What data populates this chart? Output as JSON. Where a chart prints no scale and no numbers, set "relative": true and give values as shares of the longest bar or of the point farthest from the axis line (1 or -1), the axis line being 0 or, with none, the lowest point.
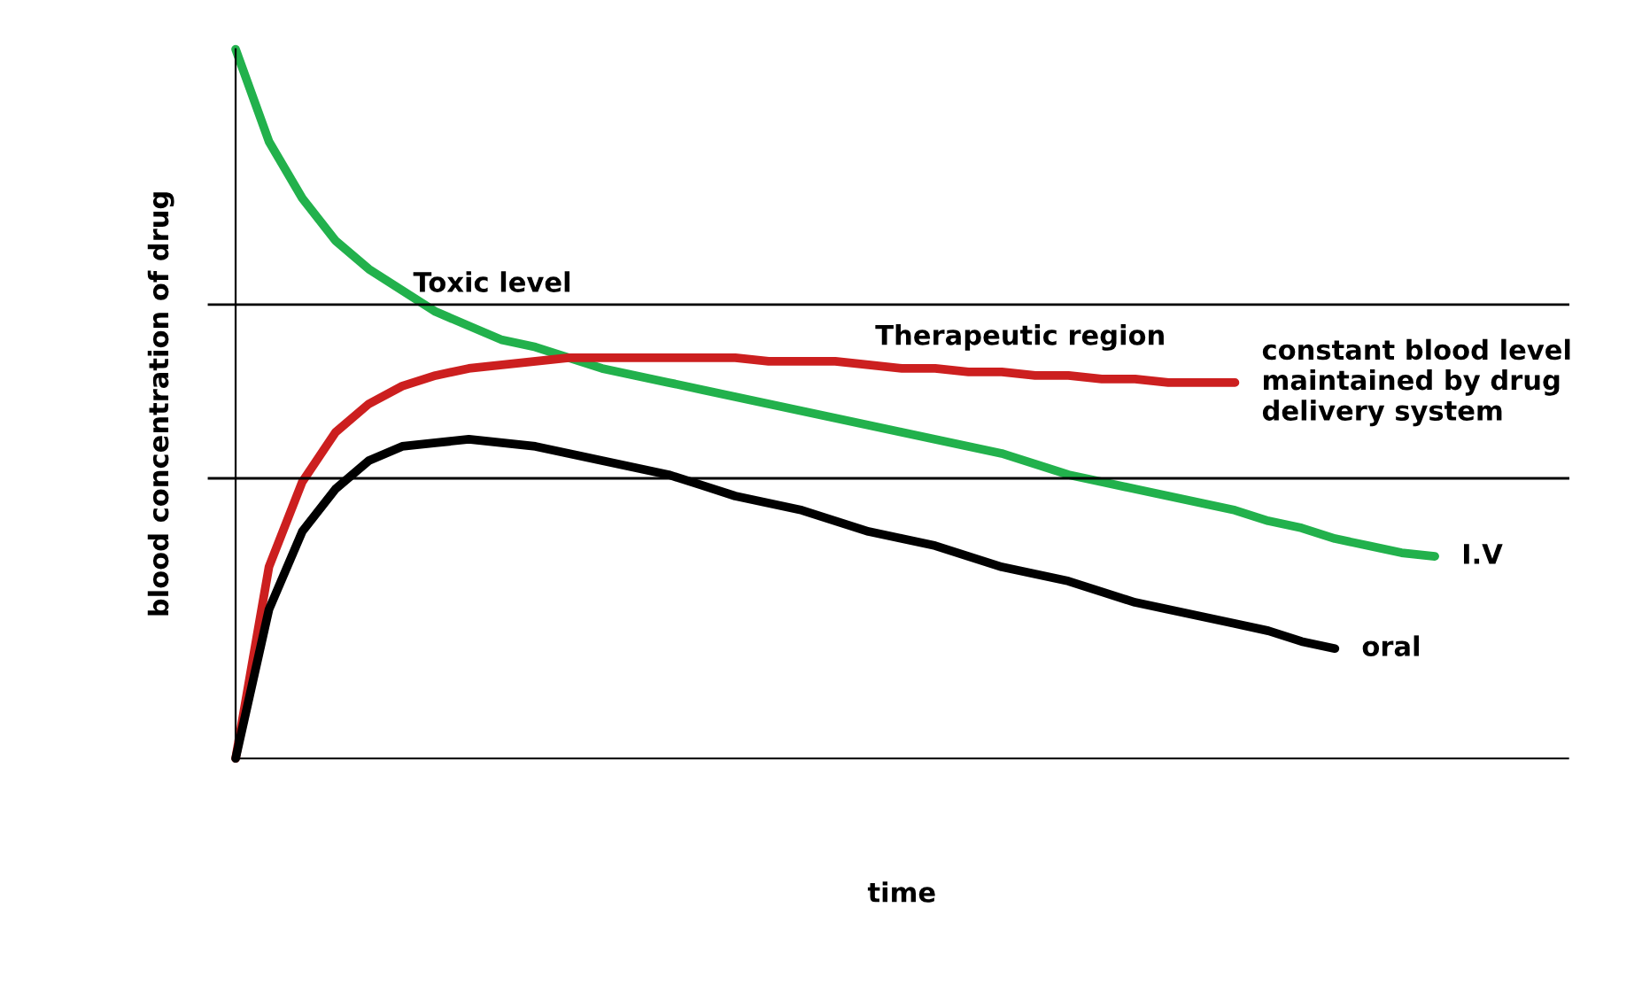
{
  "chart_data": {
    "type": "line",
    "relative": true,
    "xlabel": "time",
    "ylabel": "blood concentration of drug",
    "categories": [
      null,
      null,
      null,
      null,
      null,
      null,
      null,
      null,
      null,
      null,
      null,
      null,
      null,
      null,
      null,
      null,
      null,
      null,
      null,
      null,
      null,
      null,
      null,
      null,
      null,
      null,
      null,
      null,
      null,
      null,
      null,
      null,
      null,
      null,
      null,
      null,
      null,
      null,
      null,
      null,
      null
    ],
    "series": [
      {
        "name": "I.V",
        "color": "#22b14c",
        "values": [
          1.0,
          0.87,
          0.79,
          0.73,
          0.69,
          0.66,
          0.63,
          0.61,
          0.59,
          0.58,
          0.565,
          0.55,
          0.54,
          0.53,
          0.52,
          0.51,
          0.5,
          0.49,
          0.48,
          0.47,
          0.46,
          0.45,
          0.44,
          0.43,
          0.415,
          0.4,
          0.39,
          0.38,
          0.37,
          0.36,
          0.35,
          0.335,
          0.325,
          0.31,
          0.3,
          0.29,
          0.285,
          null,
          null,
          null,
          null
        ]
      },
      {
        "name": "constant blood level\nmaintained by drug\ndelivery system",
        "color": "#cc1f1f",
        "values": [
          0,
          0.27,
          0.39,
          0.46,
          0.5,
          0.525,
          0.54,
          0.55,
          0.555,
          0.56,
          0.565,
          0.565,
          0.565,
          0.565,
          0.565,
          0.565,
          0.56,
          0.56,
          0.56,
          0.555,
          0.55,
          0.55,
          0.545,
          0.545,
          0.54,
          0.54,
          0.535,
          0.535,
          0.53,
          0.53,
          0.53,
          null,
          null,
          null,
          null,
          null,
          null,
          null,
          null,
          null,
          null
        ]
      },
      {
        "name": "oral",
        "color": "#000000",
        "values": [
          0,
          0.21,
          0.32,
          0.38,
          0.42,
          0.44,
          0.445,
          0.45,
          0.445,
          0.44,
          0.43,
          0.42,
          0.41,
          0.4,
          0.385,
          0.37,
          0.36,
          0.35,
          0.335,
          0.32,
          0.31,
          0.3,
          0.285,
          0.27,
          0.26,
          0.25,
          0.235,
          0.22,
          0.21,
          0.2,
          0.19,
          0.18,
          0.165,
          0.155,
          null,
          null,
          null,
          null,
          null,
          null,
          null
        ]
      }
    ],
    "ref_lines": [
      {
        "axis": "y",
        "value": 0.64,
        "label": "Toxic level",
        "color": "#000000"
      },
      {
        "axis": "y",
        "value": 0.395,
        "label": null,
        "color": "#000000"
      }
    ],
    "annotations": [
      "Therapeutic region"
    ],
    "legend": false,
    "marker": "none",
    "line_style": "solid"
  }
}
